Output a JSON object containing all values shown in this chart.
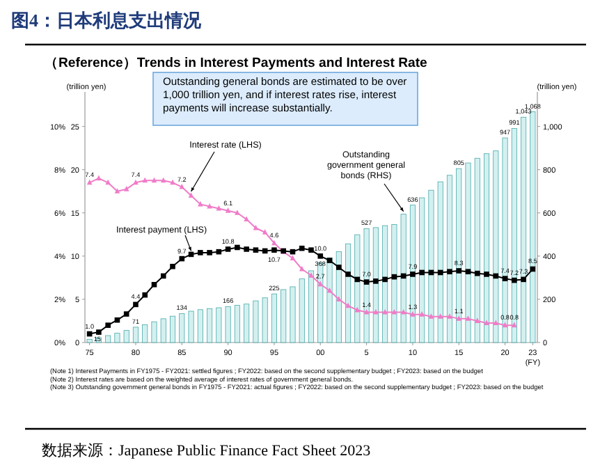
{
  "chart_data": {
    "type": "bar",
    "title": "图4：日本利息支出情况",
    "subtitle": "（Reference）Trends in Interest Payments and Interest Rate",
    "xlabel": "(FY)",
    "ylabel": "(trillion yen)",
    "y2label": "(trillion yen)",
    "categories": [
      "75",
      null,
      null,
      null,
      null,
      "80",
      null,
      null,
      null,
      null,
      "85",
      null,
      null,
      null,
      null,
      "90",
      null,
      null,
      null,
      null,
      "95",
      null,
      null,
      null,
      null,
      "00",
      null,
      null,
      null,
      null,
      "5",
      null,
      null,
      null,
      null,
      "10",
      null,
      null,
      null,
      null,
      "15",
      null,
      null,
      null,
      null,
      "20",
      null,
      null,
      "23"
    ],
    "ylim": [
      0,
      29
    ],
    "yticks": [
      0,
      5,
      10,
      15,
      20,
      25
    ],
    "y2lim": [
      0,
      1160
    ],
    "y2ticks": [
      0,
      200,
      400,
      600,
      800,
      {
        "value": 1000,
        "label": "1,000"
      }
    ],
    "y3lim": [
      0,
      11.6
    ],
    "y3ticks": [
      {
        "value": 0,
        "label": "0%"
      },
      {
        "value": 2,
        "label": "2%"
      },
      {
        "value": 4,
        "label": "4%"
      },
      {
        "value": 6,
        "label": "6%"
      },
      {
        "value": 8,
        "label": "8%"
      },
      {
        "value": 10,
        "label": "10%"
      }
    ],
    "series": [
      {
        "name": "Outstanding government general bonds (RHS)",
        "axis": "y2",
        "color": "#d3f0f0",
        "values": [
          15,
          22,
          32,
          43,
          56,
          71,
          82,
          96,
          110,
          122,
          134,
          145,
          152,
          157,
          161,
          166,
          172,
          178,
          193,
          207,
          225,
          245,
          258,
          295,
          332,
          368,
          392,
          421,
          457,
          499,
          527,
          532,
          541,
          546,
          594,
          636,
          670,
          705,
          744,
          774,
          805,
          831,
          853,
          874,
          887,
          947,
          991,
          1043,
          1068
        ],
        "value_labels": [
          "15",
          null,
          null,
          null,
          null,
          "71",
          null,
          null,
          null,
          null,
          "134",
          null,
          null,
          null,
          null,
          "166",
          null,
          null,
          null,
          null,
          "225",
          null,
          null,
          null,
          null,
          "368",
          null,
          null,
          null,
          null,
          "527",
          null,
          null,
          null,
          null,
          "636",
          null,
          null,
          null,
          null,
          "805",
          null,
          null,
          null,
          null,
          "947",
          "991",
          "1,043",
          "1,068"
        ]
      },
      {
        "name": "Interest payment (LHS)",
        "type": "line",
        "axis": "y",
        "color": "#000000",
        "marker": "square",
        "values": [
          1.0,
          1.2,
          2.0,
          2.6,
          3.3,
          4.4,
          5.5,
          6.7,
          7.7,
          8.8,
          9.7,
          10.2,
          10.4,
          10.4,
          10.5,
          10.8,
          11.0,
          10.8,
          10.7,
          10.6,
          10.7,
          10.6,
          10.5,
          10.9,
          10.7,
          10.0,
          9.5,
          8.7,
          7.9,
          7.3,
          7.0,
          7.1,
          7.3,
          7.6,
          7.7,
          7.9,
          8.1,
          8.1,
          8.1,
          8.2,
          8.3,
          8.2,
          8.0,
          7.9,
          7.7,
          7.4,
          7.2,
          7.3,
          8.5
        ],
        "value_labels": [
          "1.0",
          null,
          null,
          null,
          null,
          "4.4",
          null,
          null,
          null,
          null,
          "9.7",
          null,
          null,
          null,
          null,
          "10.8",
          null,
          null,
          null,
          null,
          "10.7",
          null,
          null,
          null,
          null,
          "10.0",
          null,
          null,
          null,
          null,
          "7.0",
          null,
          null,
          null,
          null,
          "7.9",
          null,
          null,
          null,
          null,
          "8.3",
          null,
          null,
          null,
          null,
          "7.4",
          "7.2",
          "7.3",
          "8.5"
        ]
      },
      {
        "name": "Interest rate (LHS)",
        "type": "line",
        "axis": "y3",
        "color": "#f07cc8",
        "marker": "triangle",
        "values": [
          7.4,
          7.6,
          7.4,
          7.0,
          7.1,
          7.4,
          7.5,
          7.5,
          7.5,
          7.4,
          7.2,
          6.8,
          6.4,
          6.3,
          6.2,
          6.1,
          6.0,
          5.7,
          5.3,
          5.1,
          4.6,
          4.2,
          3.9,
          3.4,
          3.1,
          2.7,
          2.4,
          2.0,
          1.7,
          1.5,
          1.4,
          1.4,
          1.4,
          1.4,
          1.4,
          1.3,
          1.3,
          1.2,
          1.2,
          1.2,
          1.1,
          1.1,
          1.0,
          0.9,
          0.9,
          0.8,
          0.8,
          null,
          null
        ],
        "value_labels": [
          "7.4",
          null,
          null,
          null,
          null,
          "7.4",
          null,
          null,
          null,
          null,
          "7.2",
          null,
          null,
          null,
          null,
          "6.1",
          null,
          null,
          null,
          null,
          "4.6",
          null,
          null,
          null,
          null,
          "2.7",
          null,
          null,
          null,
          null,
          "1.4",
          null,
          null,
          null,
          null,
          "1.3",
          null,
          null,
          null,
          null,
          "1.1",
          null,
          null,
          null,
          null,
          "0.8",
          "0.8",
          null,
          null
        ]
      }
    ],
    "annotations": [
      "Outstanding general bonds are estimated to be over 1,000 trillion yen, and if interest rates rise, interest payments will increase substantially.",
      "(Note 1) Interest Payments in FY1975 - FY2021: settled figures ; FY2022: based on the second supplementary budget ; FY2023: based on the budget",
      "(Note 2) Interest rates are based on the weighted average of interest rates of government general bonds.",
      "(Note 3) Outstanding government general bonds in FY1975 - FY2021: actual figures ; FY2022: based on the second supplementary budget ; FY2023: based on the budget",
      "数据来源：Japanese Public Finance Fact Sheet 2023"
    ]
  }
}
